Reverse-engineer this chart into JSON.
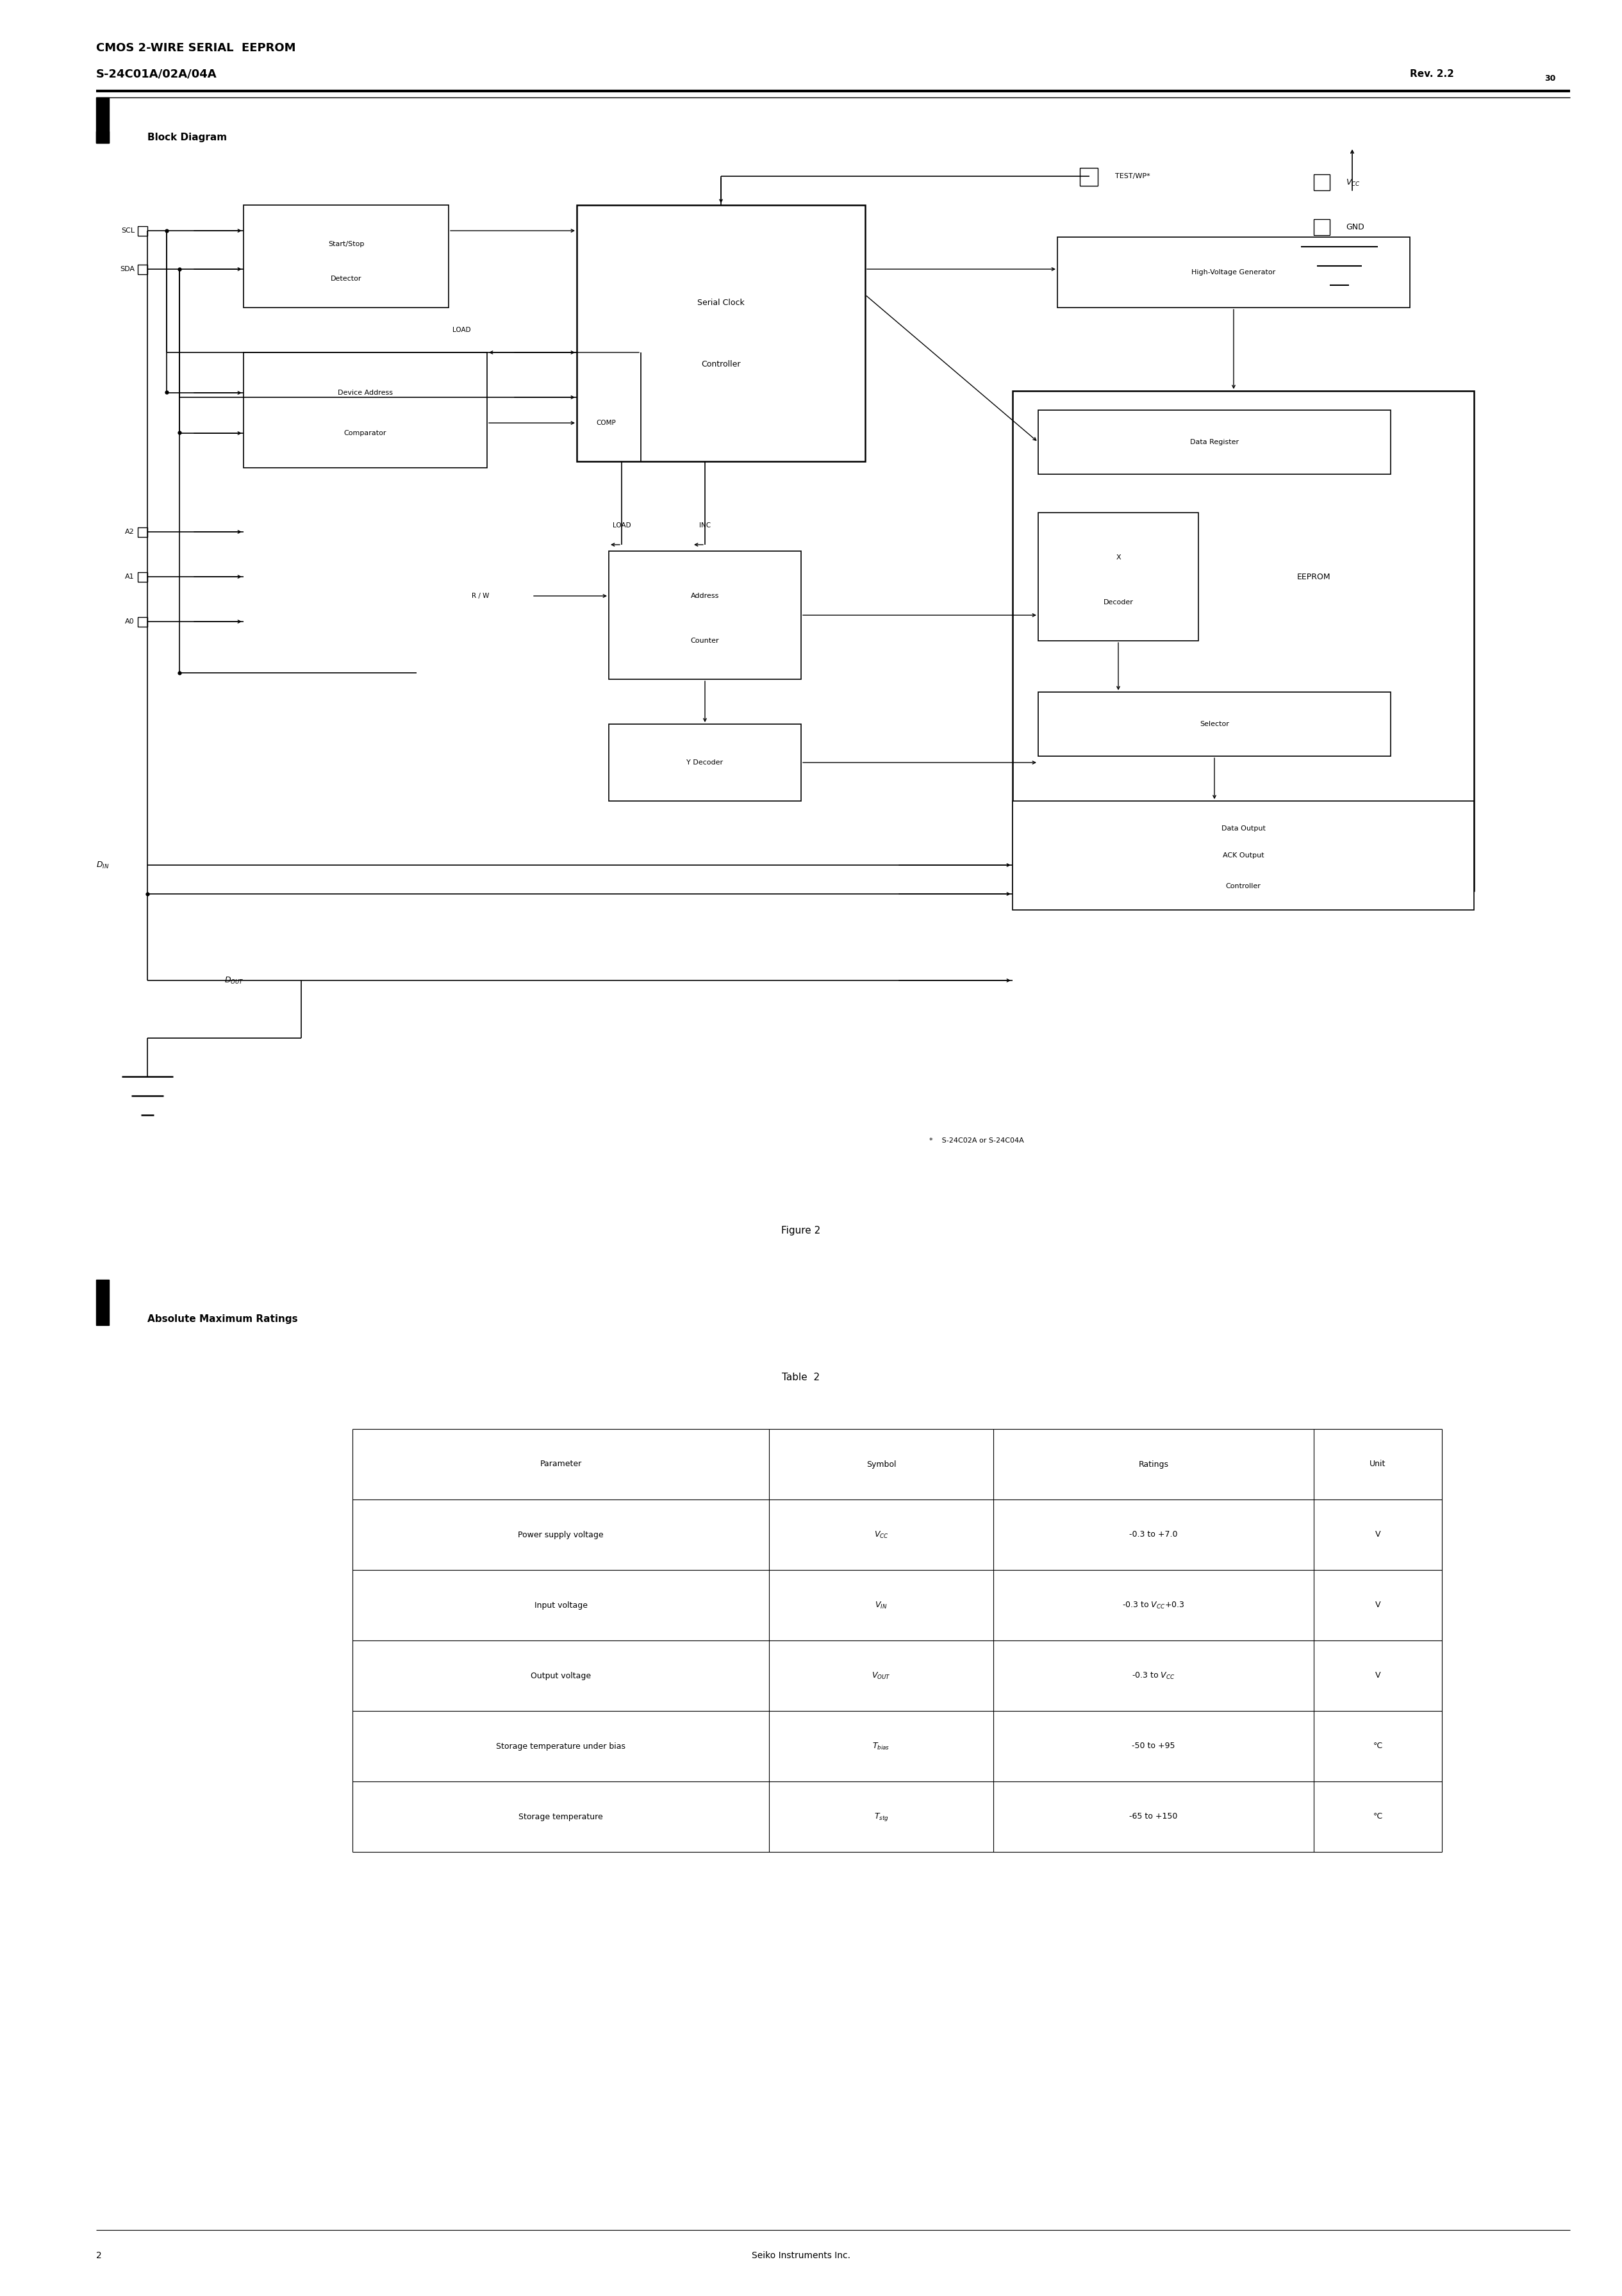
{
  "page_width": 25.31,
  "page_height": 35.83,
  "bg_color": "#ffffff",
  "header_title1": "CMOS 2-WIRE SERIAL  EEPROM",
  "header_title2": "S-24C01A/02A/04A",
  "header_rev": "Rev. 2.2",
  "header_rev_num": "30",
  "section1_title": "Block Diagram",
  "figure_caption": "Figure 2",
  "section2_title": "Absolute Maximum Ratings",
  "table_caption": "Table  2",
  "table_headers": [
    "Parameter",
    "Symbol",
    "Ratings",
    "Unit"
  ],
  "table_rows": [
    [
      "Power supply voltage",
      "V_CC",
      "-0.3 to +7.0",
      "V"
    ],
    [
      "Input voltage",
      "V_IN",
      "-0.3 to V_CC+0.3",
      "V"
    ],
    [
      "Output voltage",
      "V_OUT",
      "-0.3 to V_CC",
      "V"
    ],
    [
      "Storage temperature under bias",
      "T_bias",
      "-50 to +95",
      "°C"
    ],
    [
      "Storage temperature",
      "T_stg",
      "-65 to +150",
      "°C"
    ]
  ],
  "footer_page": "2",
  "footer_company": "Seiko Instruments Inc.",
  "note_text": "*    S-24C02A or S-24C04A"
}
